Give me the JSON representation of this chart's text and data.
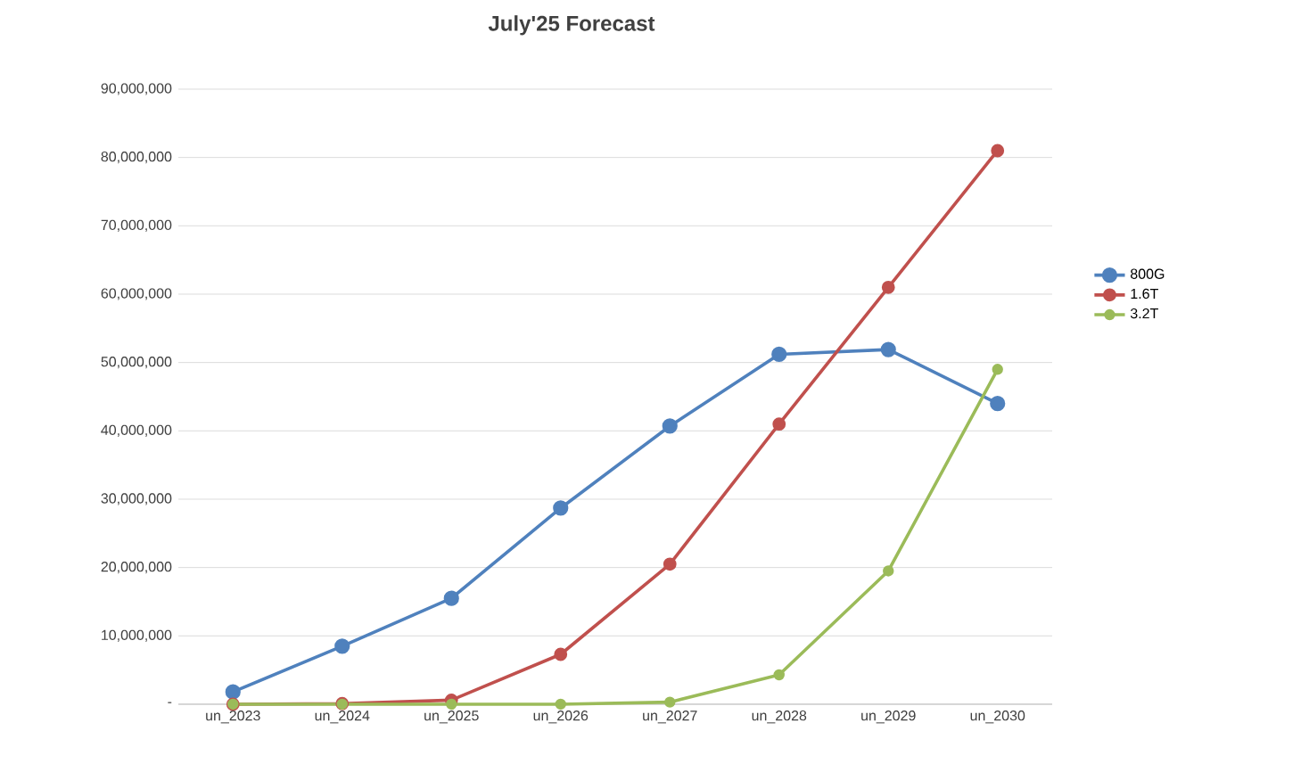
{
  "chart_data": {
    "type": "line",
    "title": "July'25 Forecast",
    "categories": [
      "un_2023",
      "un_2024",
      "un_2025",
      "un_2026",
      "un_2027",
      "un_2028",
      "un_2029",
      "un_2030"
    ],
    "series": [
      {
        "name": "800G",
        "color": "#4f81bd",
        "values": [
          1800000,
          8500000,
          15500000,
          28700000,
          40700000,
          51200000,
          51900000,
          44000000
        ]
      },
      {
        "name": "1.6T",
        "color": "#c0504d",
        "values": [
          0,
          100000,
          600000,
          7300000,
          20500000,
          41000000,
          61000000,
          81000000
        ]
      },
      {
        "name": "3.2T",
        "color": "#9bbb59",
        "values": [
          0,
          0,
          0,
          0,
          300000,
          4300000,
          19500000,
          49000000
        ]
      }
    ],
    "ylim": [
      0,
      90000000
    ],
    "yticks": [
      {
        "value": 0,
        "label": "-"
      },
      {
        "value": 10000000,
        "label": "10,000,000"
      },
      {
        "value": 20000000,
        "label": "20,000,000"
      },
      {
        "value": 30000000,
        "label": "30,000,000"
      },
      {
        "value": 40000000,
        "label": "40,000,000"
      },
      {
        "value": 50000000,
        "label": "50,000,000"
      },
      {
        "value": 60000000,
        "label": "60,000,000"
      },
      {
        "value": 70000000,
        "label": "70,000,000"
      },
      {
        "value": 80000000,
        "label": "80,000,000"
      },
      {
        "value": 90000000,
        "label": "90,000,000"
      }
    ],
    "grid": "y",
    "legend": "right",
    "marker": "circle",
    "line_style": "solid"
  }
}
